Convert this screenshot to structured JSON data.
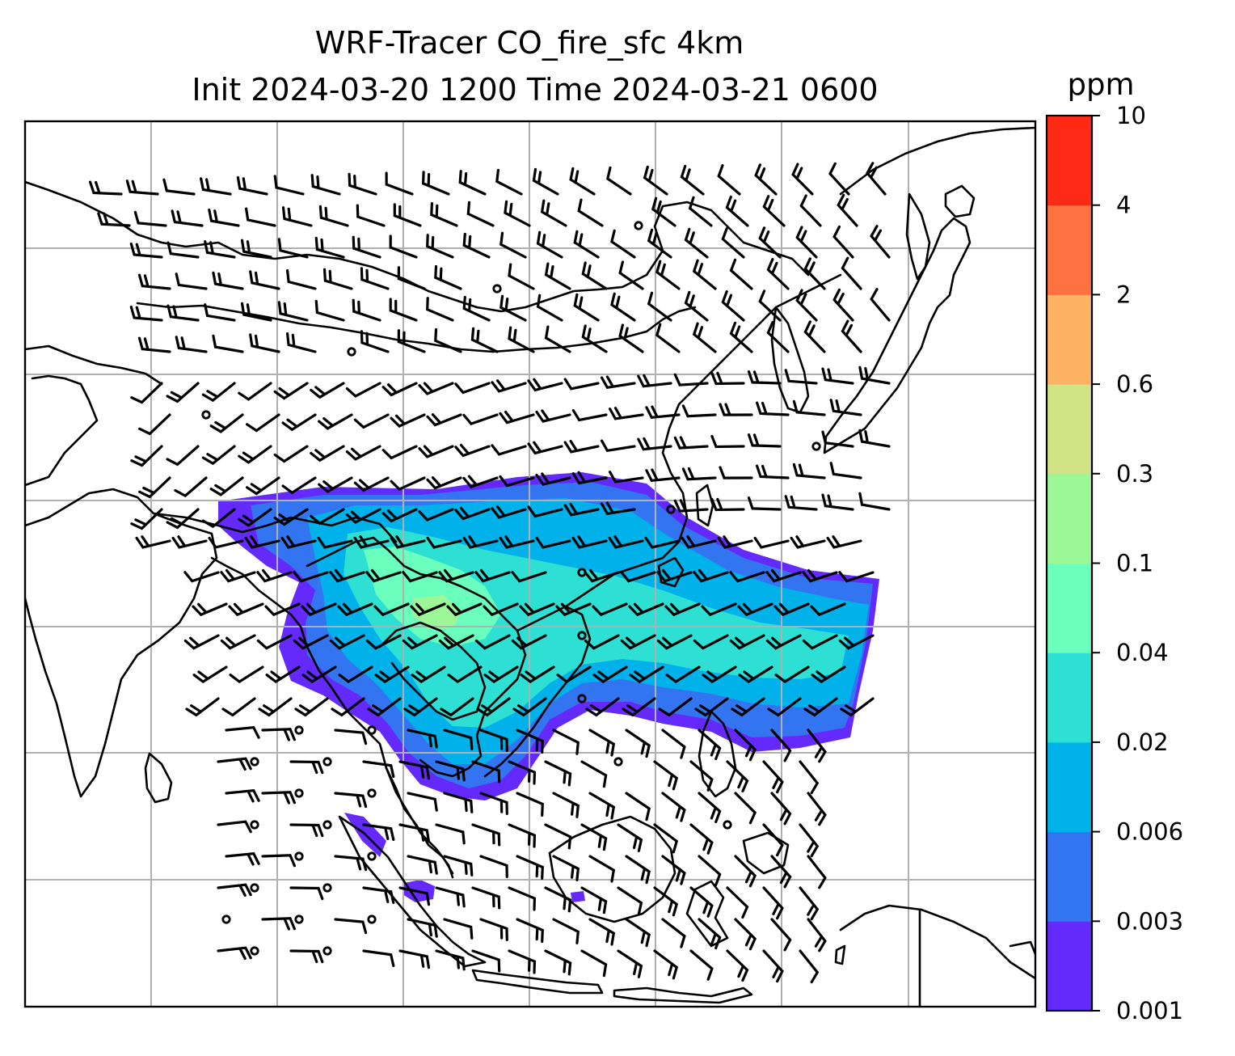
{
  "title": {
    "line1": "WRF-Tracer CO_fire_sfc 4km",
    "line2": "Init 2024-03-20 1200 Time 2024-03-21 0600"
  },
  "colorbar": {
    "unit": "ppm",
    "levels": [
      "0.001",
      "0.003",
      "0.006",
      "0.02",
      "0.04",
      "0.1",
      "0.3",
      "0.6",
      "2",
      "4",
      "10"
    ],
    "colors": [
      "#6429fb",
      "#3375f1",
      "#00b1ea",
      "#2ee0d4",
      "#6bffbd",
      "#9cf897",
      "#d1e385",
      "#fdb264",
      "#fe7140",
      "#ff2a16"
    ]
  },
  "map": {
    "gridlines": true,
    "grid_color": "#b0b0b0",
    "features": [
      "coastlines",
      "borders",
      "wind-barbs",
      "calm-wind-circles"
    ]
  }
}
